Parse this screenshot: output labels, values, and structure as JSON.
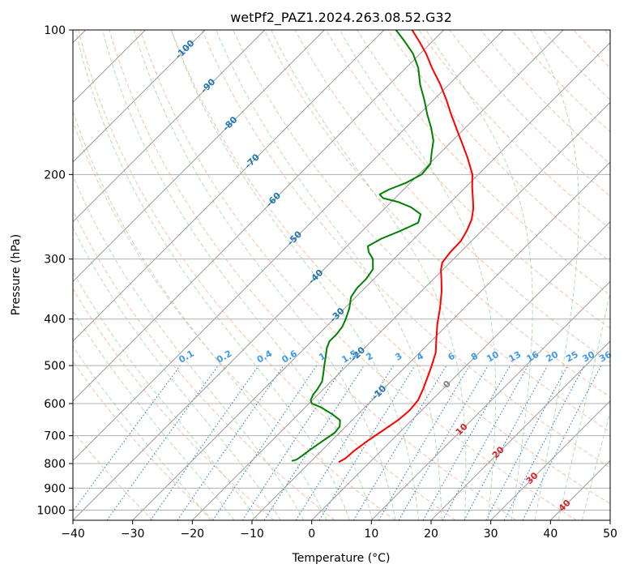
{
  "chart_data": {
    "type": "line",
    "subtype": "skew-T log-P diagram",
    "title": "wetPf2_PAZ1.2024.263.08.52.G32",
    "xlabel": "Temperature (°C)",
    "ylabel": "Pressure (hPa)",
    "xlim": [
      -40,
      50
    ],
    "ylim": [
      1050,
      100
    ],
    "y_scale": "log",
    "grid": true,
    "x_ticks": [
      "−40",
      "−30",
      "−20",
      "−10",
      "0",
      "10",
      "20",
      "30",
      "40",
      "50"
    ],
    "x_tick_values": [
      -40,
      -30,
      -20,
      -10,
      0,
      10,
      20,
      30,
      40,
      50
    ],
    "y_ticks": [
      "100",
      "200",
      "300",
      "400",
      "500",
      "600",
      "700",
      "800",
      "900",
      "1000"
    ],
    "y_tick_values": [
      100,
      200,
      300,
      400,
      500,
      600,
      700,
      800,
      900,
      1000
    ],
    "colors": {
      "temperature": "#ff0000",
      "dewpoint": "#008000",
      "isotherm": "#808080",
      "dry_adiabat": "#f4a582",
      "moist_adiabat": "#a6d8a6",
      "mixing_ratio": "#2b7fd4",
      "isotherm_label": "#1f77b4",
      "dry_adiabat_label": "#d62728"
    },
    "isotherm_labels": [
      "-100",
      "-90",
      "-80",
      "-70",
      "-60",
      "-50",
      "-40",
      "-30",
      "-20",
      "-10",
      "0",
      "10",
      "20",
      "30",
      "40"
    ],
    "isotherm_label_positions": [
      {
        "t": -100,
        "p": 110
      },
      {
        "t": -90,
        "p": 131
      },
      {
        "t": -80,
        "p": 157
      },
      {
        "t": -70,
        "p": 188
      },
      {
        "t": -60,
        "p": 226
      },
      {
        "t": -50,
        "p": 272
      },
      {
        "t": -40,
        "p": 327
      },
      {
        "t": -30,
        "p": 393
      },
      {
        "t": -20,
        "p": 474
      },
      {
        "t": -10,
        "p": 570
      },
      {
        "t": 0,
        "p": 548
      },
      {
        "t": 10,
        "p": 680
      },
      {
        "t": 20,
        "p": 760
      },
      {
        "t": 30,
        "p": 860
      },
      {
        "t": 40,
        "p": 980
      }
    ],
    "mixing_ratio_labels": [
      "0.1",
      "0.2",
      "0.4",
      "0.6",
      "1",
      "1.5",
      "2",
      "3",
      "4",
      "6",
      "8",
      "10",
      "13",
      "16",
      "20",
      "25",
      "30",
      "36"
    ],
    "mixing_ratio_label_pressure": 480,
    "series": [
      {
        "name": "Temperature",
        "color": "#ff0000",
        "points": [
          {
            "p": 795,
            "t": -5.2
          },
          {
            "p": 780,
            "t": -4.7
          },
          {
            "p": 750,
            "t": -4.5
          },
          {
            "p": 720,
            "t": -4.0
          },
          {
            "p": 690,
            "t": -3.3
          },
          {
            "p": 650,
            "t": -2.3
          },
          {
            "p": 620,
            "t": -2.0
          },
          {
            "p": 590,
            "t": -2.3
          },
          {
            "p": 560,
            "t": -3.3
          },
          {
            "p": 530,
            "t": -4.5
          },
          {
            "p": 500,
            "t": -5.8
          },
          {
            "p": 470,
            "t": -7.3
          },
          {
            "p": 440,
            "t": -9.5
          },
          {
            "p": 410,
            "t": -11.8
          },
          {
            "p": 380,
            "t": -14.0
          },
          {
            "p": 350,
            "t": -16.6
          },
          {
            "p": 330,
            "t": -18.7
          },
          {
            "p": 316,
            "t": -20.3
          },
          {
            "p": 305,
            "t": -21.3
          },
          {
            "p": 290,
            "t": -21.7
          },
          {
            "p": 275,
            "t": -21.8
          },
          {
            "p": 262,
            "t": -22.5
          },
          {
            "p": 248,
            "t": -23.6
          },
          {
            "p": 235,
            "t": -25.2
          },
          {
            "p": 222,
            "t": -27.3
          },
          {
            "p": 212,
            "t": -29.0
          },
          {
            "p": 200,
            "t": -31.0
          },
          {
            "p": 185,
            "t": -34.5
          },
          {
            "p": 172,
            "t": -38.0
          },
          {
            "p": 160,
            "t": -41.5
          },
          {
            "p": 150,
            "t": -44.6
          },
          {
            "p": 140,
            "t": -47.8
          },
          {
            "p": 130,
            "t": -51.4
          },
          {
            "p": 120,
            "t": -55.6
          },
          {
            "p": 112,
            "t": -59.0
          },
          {
            "p": 106,
            "t": -62.0
          },
          {
            "p": 100,
            "t": -65.3
          }
        ]
      },
      {
        "name": "Dewpoint",
        "color": "#008000",
        "points": [
          {
            "p": 790,
            "t": -13.3
          },
          {
            "p": 785,
            "t": -12.7
          },
          {
            "p": 770,
            "t": -12.4
          },
          {
            "p": 750,
            "t": -12.1
          },
          {
            "p": 720,
            "t": -11.5
          },
          {
            "p": 690,
            "t": -10.8
          },
          {
            "p": 670,
            "t": -11.0
          },
          {
            "p": 650,
            "t": -12.0
          },
          {
            "p": 630,
            "t": -14.5
          },
          {
            "p": 610,
            "t": -17.5
          },
          {
            "p": 600,
            "t": -19.5
          },
          {
            "p": 590,
            "t": -20.3
          },
          {
            "p": 575,
            "t": -20.8
          },
          {
            "p": 560,
            "t": -21.0
          },
          {
            "p": 540,
            "t": -21.5
          },
          {
            "p": 520,
            "t": -22.6
          },
          {
            "p": 500,
            "t": -23.8
          },
          {
            "p": 480,
            "t": -25.0
          },
          {
            "p": 460,
            "t": -26.3
          },
          {
            "p": 445,
            "t": -27.0
          },
          {
            "p": 430,
            "t": -27.0
          },
          {
            "p": 415,
            "t": -27.3
          },
          {
            "p": 400,
            "t": -28.0
          },
          {
            "p": 380,
            "t": -29.2
          },
          {
            "p": 360,
            "t": -30.8
          },
          {
            "p": 345,
            "t": -31.3
          },
          {
            "p": 330,
            "t": -31.3
          },
          {
            "p": 315,
            "t": -31.8
          },
          {
            "p": 300,
            "t": -33.5
          },
          {
            "p": 290,
            "t": -35.4
          },
          {
            "p": 282,
            "t": -36.5
          },
          {
            "p": 272,
            "t": -35.5
          },
          {
            "p": 262,
            "t": -33.6
          },
          {
            "p": 252,
            "t": -32.0
          },
          {
            "p": 242,
            "t": -33.0
          },
          {
            "p": 234,
            "t": -35.8
          },
          {
            "p": 228,
            "t": -38.9
          },
          {
            "p": 224,
            "t": -42.0
          },
          {
            "p": 220,
            "t": -43.2
          },
          {
            "p": 215,
            "t": -42.5
          },
          {
            "p": 208,
            "t": -40.7
          },
          {
            "p": 200,
            "t": -39.5
          },
          {
            "p": 190,
            "t": -39.8
          },
          {
            "p": 180,
            "t": -41.5
          },
          {
            "p": 170,
            "t": -43.2
          },
          {
            "p": 160,
            "t": -45.7
          },
          {
            "p": 150,
            "t": -48.6
          },
          {
            "p": 140,
            "t": -51.5
          },
          {
            "p": 130,
            "t": -54.8
          },
          {
            "p": 120,
            "t": -57.9
          },
          {
            "p": 112,
            "t": -61.2
          },
          {
            "p": 105,
            "t": -65.0
          },
          {
            "p": 100,
            "t": -68.0
          }
        ]
      }
    ]
  }
}
